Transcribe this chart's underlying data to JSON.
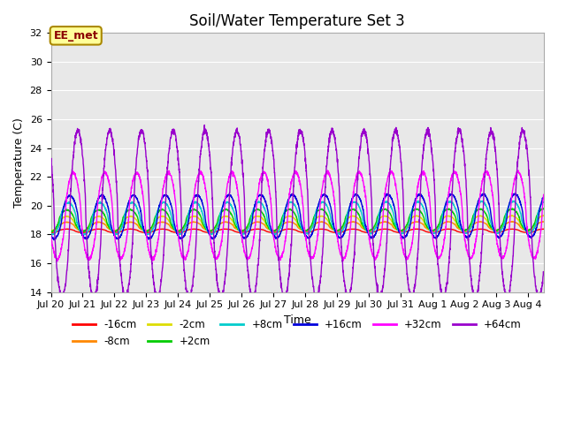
{
  "title": "Soil/Water Temperature Set 3",
  "xlabel": "Time",
  "ylabel": "Temperature (C)",
  "ylim": [
    14,
    32
  ],
  "yticks": [
    14,
    16,
    18,
    20,
    22,
    24,
    26,
    28,
    30,
    32
  ],
  "background_color": "#ffffff",
  "plot_bg_color": "#e8e8e8",
  "series": [
    {
      "name": "-16cm",
      "color": "#ff0000",
      "amplitude": 0.12,
      "base": 18.25,
      "phase": 0.0,
      "trend": 0.0
    },
    {
      "name": "-8cm",
      "color": "#ff8800",
      "amplitude": 0.3,
      "base": 18.55,
      "phase": 0.0,
      "trend": 0.002
    },
    {
      "name": "-2cm",
      "color": "#dddd00",
      "amplitude": 0.5,
      "base": 18.75,
      "phase": 0.0,
      "trend": 0.003
    },
    {
      "name": "+2cm",
      "color": "#00cc00",
      "amplitude": 0.75,
      "base": 18.95,
      "phase": 0.0,
      "trend": 0.005
    },
    {
      "name": "+8cm",
      "color": "#00cccc",
      "amplitude": 1.1,
      "base": 19.1,
      "phase": 0.05,
      "trend": 0.006
    },
    {
      "name": "+16cm",
      "color": "#0000dd",
      "amplitude": 1.5,
      "base": 19.2,
      "phase": 0.1,
      "trend": 0.007
    },
    {
      "name": "+32cm",
      "color": "#ff00ff",
      "amplitude": 3.0,
      "base": 19.3,
      "phase": 0.2,
      "trend": 0.003
    },
    {
      "name": "+64cm",
      "color": "#9900cc",
      "amplitude": 5.8,
      "base": 19.4,
      "phase": 0.35,
      "trend": 0.001
    }
  ],
  "annotation_text": "EE_met",
  "period_hours": 24,
  "x_tick_labels": [
    "Jul 20",
    "Jul 21",
    "Jul 22",
    "Jul 23",
    "Jul 24",
    "Jul 25",
    "Jul 26",
    "Jul 27",
    "Jul 28",
    "Jul 29",
    "Jul 30",
    "Jul 31",
    "Aug 1",
    "Aug 2",
    "Aug 3",
    "Aug 4"
  ],
  "grid_color": "#ffffff",
  "title_fontsize": 12,
  "axis_fontsize": 9,
  "tick_fontsize": 8
}
